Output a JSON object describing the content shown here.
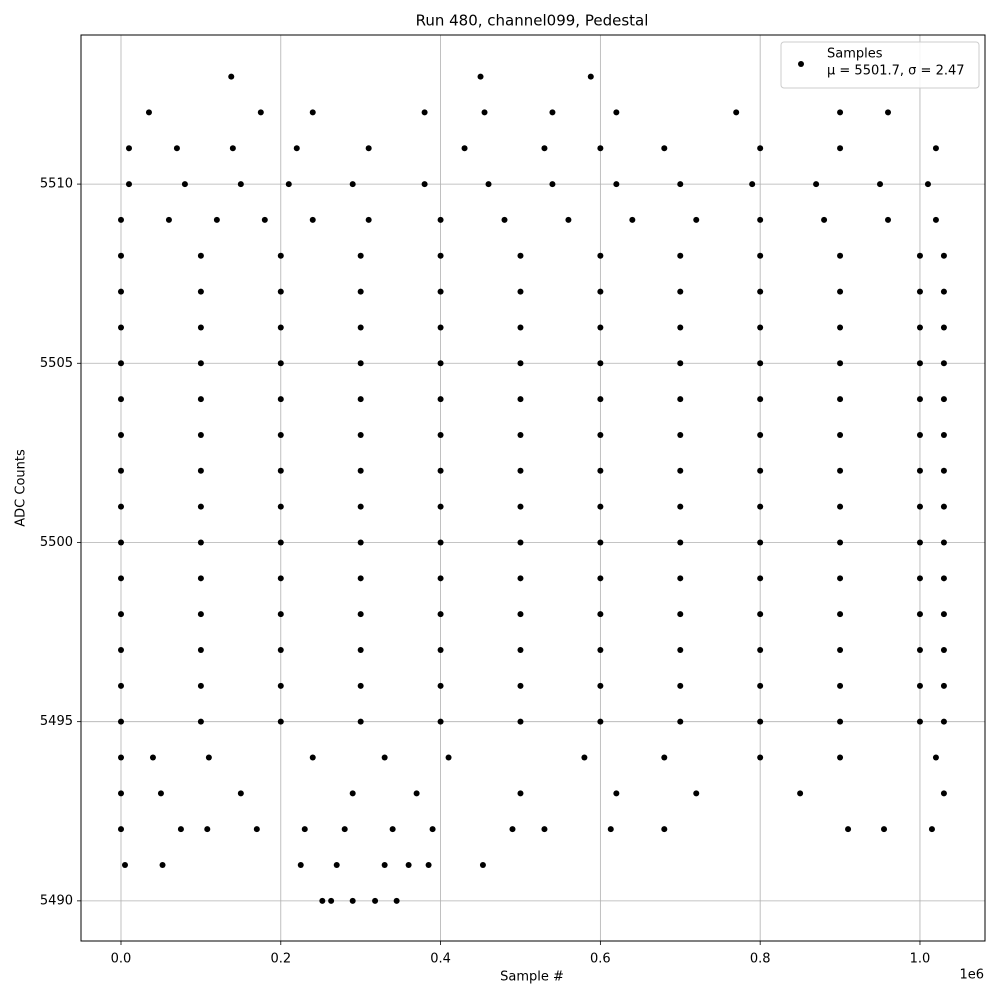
{
  "chart_data": {
    "type": "scatter",
    "title": "Run 480, channel099, Pedestal",
    "x_label": "Sample #",
    "y_label": "ADC Counts",
    "x_offset_label": "1e6",
    "legend_note": "μ = 5501.7, σ = 2.47",
    "legend": "upper right",
    "grid": true,
    "xlim": [
      -50060,
      1081400
    ],
    "ylim": [
      5488.88,
      5514.16
    ],
    "xticks": [
      {
        "value": 0,
        "label": "0.0"
      },
      {
        "value": 200000,
        "label": "0.2"
      },
      {
        "value": 400000,
        "label": "0.4"
      },
      {
        "value": 600000,
        "label": "0.6"
      },
      {
        "value": 800000,
        "label": "0.8"
      },
      {
        "value": 1000000,
        "label": "1.0"
      }
    ],
    "yticks": [
      5490,
      5495,
      5500,
      5505,
      5510
    ],
    "series": [
      {
        "name": "Samples",
        "color": "#000000",
        "x": [
          0,
          100000,
          200000,
          300000,
          400000,
          500000,
          600000,
          700000,
          800000,
          900000,
          1000000,
          1030000,
          0,
          100000,
          200000,
          300000,
          400000,
          500000,
          600000,
          700000,
          800000,
          900000,
          1000000,
          1030000,
          0,
          100000,
          200000,
          300000,
          400000,
          500000,
          600000,
          700000,
          800000,
          900000,
          1000000,
          1030000,
          0,
          100000,
          200000,
          300000,
          400000,
          500000,
          600000,
          700000,
          800000,
          900000,
          1000000,
          1030000,
          0,
          100000,
          200000,
          300000,
          400000,
          500000,
          600000,
          700000,
          800000,
          900000,
          1000000,
          1030000,
          0,
          100000,
          200000,
          300000,
          400000,
          500000,
          600000,
          700000,
          800000,
          900000,
          1000000,
          1030000,
          0,
          100000,
          200000,
          300000,
          400000,
          500000,
          600000,
          700000,
          800000,
          900000,
          1000000,
          1030000,
          0,
          100000,
          200000,
          300000,
          400000,
          500000,
          600000,
          700000,
          800000,
          900000,
          1000000,
          1030000,
          0,
          100000,
          200000,
          300000,
          400000,
          500000,
          600000,
          700000,
          800000,
          900000,
          1000000,
          1030000,
          0,
          100000,
          200000,
          300000,
          400000,
          500000,
          600000,
          700000,
          800000,
          900000,
          1000000,
          1030000,
          0,
          100000,
          200000,
          300000,
          400000,
          500000,
          600000,
          700000,
          800000,
          900000,
          1000000,
          1030000,
          0,
          100000,
          200000,
          300000,
          400000,
          500000,
          600000,
          700000,
          800000,
          900000,
          1000000,
          1030000,
          0,
          100000,
          200000,
          300000,
          400000,
          500000,
          600000,
          700000,
          800000,
          900000,
          1000000,
          1030000,
          0,
          100000,
          200000,
          300000,
          400000,
          500000,
          600000,
          700000,
          800000,
          900000,
          1000000,
          1030000,
          0,
          60000,
          120000,
          180000,
          240000,
          310000,
          400000,
          480000,
          560000,
          640000,
          720000,
          800000,
          880000,
          960000,
          1020000,
          10000,
          80000,
          150000,
          210000,
          290000,
          380000,
          460000,
          540000,
          620000,
          700000,
          790000,
          870000,
          950000,
          1010000,
          10000,
          70000,
          140000,
          220000,
          310000,
          430000,
          530000,
          600000,
          680000,
          800000,
          900000,
          1020000,
          35000,
          175000,
          240000,
          380000,
          455000,
          540000,
          620000,
          770000,
          900000,
          960000,
          138000,
          450000,
          588000,
          0,
          40000,
          110000,
          240000,
          330000,
          410000,
          580000,
          680000,
          800000,
          900000,
          1020000,
          0,
          50000,
          150000,
          290000,
          370000,
          500000,
          620000,
          720000,
          850000,
          1030000,
          0,
          75000,
          108000,
          170000,
          230000,
          280000,
          340000,
          390000,
          490000,
          530000,
          613000,
          680000,
          910000,
          955000,
          1015000,
          5000,
          52000,
          225000,
          270000,
          330000,
          360000,
          385000,
          453000,
          252000,
          263000,
          290000,
          318000,
          345000
        ],
        "values": [
          5508,
          5508,
          5508,
          5508,
          5508,
          5508,
          5508,
          5508,
          5508,
          5508,
          5508,
          5508,
          5507,
          5507,
          5507,
          5507,
          5507,
          5507,
          5507,
          5507,
          5507,
          5507,
          5507,
          5507,
          5506,
          5506,
          5506,
          5506,
          5506,
          5506,
          5506,
          5506,
          5506,
          5506,
          5506,
          5506,
          5505,
          5505,
          5505,
          5505,
          5505,
          5505,
          5505,
          5505,
          5505,
          5505,
          5505,
          5505,
          5504,
          5504,
          5504,
          5504,
          5504,
          5504,
          5504,
          5504,
          5504,
          5504,
          5504,
          5504,
          5503,
          5503,
          5503,
          5503,
          5503,
          5503,
          5503,
          5503,
          5503,
          5503,
          5503,
          5503,
          5502,
          5502,
          5502,
          5502,
          5502,
          5502,
          5502,
          5502,
          5502,
          5502,
          5502,
          5502,
          5501,
          5501,
          5501,
          5501,
          5501,
          5501,
          5501,
          5501,
          5501,
          5501,
          5501,
          5501,
          5500,
          5500,
          5500,
          5500,
          5500,
          5500,
          5500,
          5500,
          5500,
          5500,
          5500,
          5500,
          5499,
          5499,
          5499,
          5499,
          5499,
          5499,
          5499,
          5499,
          5499,
          5499,
          5499,
          5499,
          5498,
          5498,
          5498,
          5498,
          5498,
          5498,
          5498,
          5498,
          5498,
          5498,
          5498,
          5498,
          5497,
          5497,
          5497,
          5497,
          5497,
          5497,
          5497,
          5497,
          5497,
          5497,
          5497,
          5497,
          5496,
          5496,
          5496,
          5496,
          5496,
          5496,
          5496,
          5496,
          5496,
          5496,
          5496,
          5496,
          5495,
          5495,
          5495,
          5495,
          5495,
          5495,
          5495,
          5495,
          5495,
          5495,
          5495,
          5495,
          5509,
          5509,
          5509,
          5509,
          5509,
          5509,
          5509,
          5509,
          5509,
          5509,
          5509,
          5509,
          5509,
          5509,
          5509,
          5510,
          5510,
          5510,
          5510,
          5510,
          5510,
          5510,
          5510,
          5510,
          5510,
          5510,
          5510,
          5510,
          5510,
          5511,
          5511,
          5511,
          5511,
          5511,
          5511,
          5511,
          5511,
          5511,
          5511,
          5511,
          5511,
          5512,
          5512,
          5512,
          5512,
          5512,
          5512,
          5512,
          5512,
          5512,
          5512,
          5513,
          5513,
          5513,
          5494,
          5494,
          5494,
          5494,
          5494,
          5494,
          5494,
          5494,
          5494,
          5494,
          5494,
          5493,
          5493,
          5493,
          5493,
          5493,
          5493,
          5493,
          5493,
          5493,
          5493,
          5492,
          5492,
          5492,
          5492,
          5492,
          5492,
          5492,
          5492,
          5492,
          5492,
          5492,
          5492,
          5492,
          5492,
          5492,
          5491,
          5491,
          5491,
          5491,
          5491,
          5491,
          5491,
          5491,
          5490,
          5490,
          5490,
          5490,
          5490
        ]
      }
    ]
  }
}
